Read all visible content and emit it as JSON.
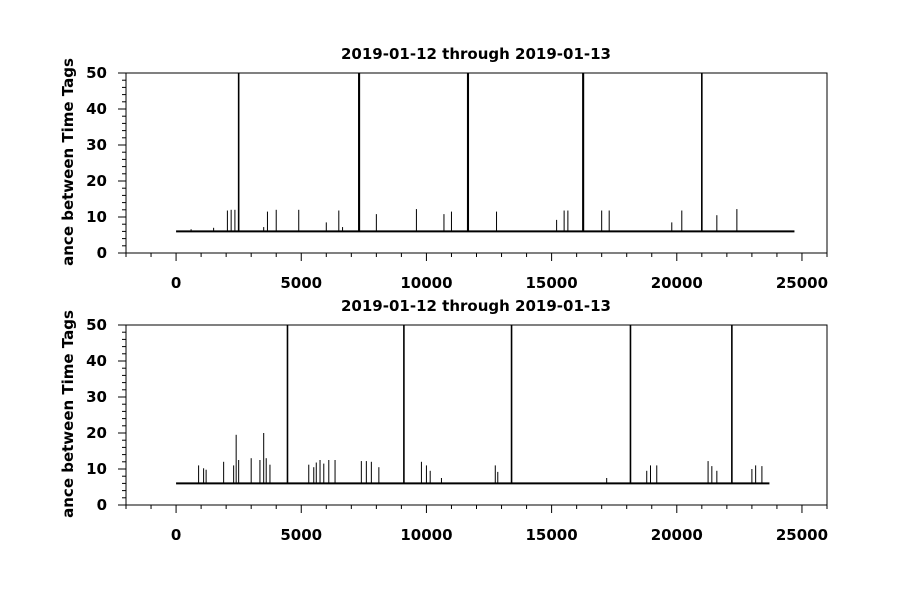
{
  "chart_data": [
    {
      "type": "line",
      "title": "2019-01-12 through 2019-01-13",
      "xlabel": "",
      "ylabel": "ance between Time Tags",
      "xlim": [
        -2000,
        26000
      ],
      "ylim": [
        0,
        50
      ],
      "xticks": [
        0,
        5000,
        10000,
        15000,
        20000,
        25000
      ],
      "yticks": [
        0,
        10,
        20,
        30,
        40,
        50
      ],
      "grid": false,
      "baseline": {
        "x_start": 0,
        "x_end": 24700,
        "y": 6
      },
      "spikes": [
        {
          "x": 600,
          "y": 6.6
        },
        {
          "x": 1500,
          "y": 7.0
        },
        {
          "x": 2050,
          "y": 11.8
        },
        {
          "x": 2200,
          "y": 12.0
        },
        {
          "x": 2350,
          "y": 12.0
        },
        {
          "x": 2500,
          "y": 50
        },
        {
          "x": 3500,
          "y": 7.2
        },
        {
          "x": 3650,
          "y": 11.5
        },
        {
          "x": 4000,
          "y": 12.0
        },
        {
          "x": 4900,
          "y": 12.0
        },
        {
          "x": 6000,
          "y": 8.5
        },
        {
          "x": 6500,
          "y": 11.8
        },
        {
          "x": 6650,
          "y": 7.2
        },
        {
          "x": 7300,
          "y": 50
        },
        {
          "x": 7320,
          "y": 50
        },
        {
          "x": 8000,
          "y": 10.8
        },
        {
          "x": 9600,
          "y": 12.2
        },
        {
          "x": 10700,
          "y": 10.8
        },
        {
          "x": 11000,
          "y": 11.5
        },
        {
          "x": 11650,
          "y": 50
        },
        {
          "x": 11670,
          "y": 50
        },
        {
          "x": 12800,
          "y": 11.5
        },
        {
          "x": 15200,
          "y": 9.2
        },
        {
          "x": 15500,
          "y": 11.8
        },
        {
          "x": 15650,
          "y": 11.8
        },
        {
          "x": 16250,
          "y": 50
        },
        {
          "x": 16270,
          "y": 50
        },
        {
          "x": 17000,
          "y": 11.8
        },
        {
          "x": 17300,
          "y": 11.8
        },
        {
          "x": 19800,
          "y": 8.5
        },
        {
          "x": 20200,
          "y": 11.8
        },
        {
          "x": 21000,
          "y": 50
        },
        {
          "x": 21000,
          "y": 7.2
        },
        {
          "x": 21600,
          "y": 10.5
        },
        {
          "x": 22400,
          "y": 12.2
        }
      ]
    },
    {
      "type": "line",
      "title": "2019-01-12 through 2019-01-13",
      "xlabel": "",
      "ylabel": "ance between Time Tags",
      "xlim": [
        -2000,
        26000
      ],
      "ylim": [
        0,
        50
      ],
      "xticks": [
        0,
        5000,
        10000,
        15000,
        20000,
        25000
      ],
      "yticks": [
        0,
        10,
        20,
        30,
        40,
        50
      ],
      "grid": false,
      "baseline": {
        "x_start": 0,
        "x_end": 23700,
        "y": 6
      },
      "spikes": [
        {
          "x": 900,
          "y": 11.0
        },
        {
          "x": 1100,
          "y": 10.2
        },
        {
          "x": 1200,
          "y": 9.8
        },
        {
          "x": 1900,
          "y": 12.0
        },
        {
          "x": 2300,
          "y": 11.0
        },
        {
          "x": 2400,
          "y": 19.5
        },
        {
          "x": 2500,
          "y": 12.5
        },
        {
          "x": 3000,
          "y": 13.0
        },
        {
          "x": 3350,
          "y": 12.5
        },
        {
          "x": 3500,
          "y": 20.0
        },
        {
          "x": 3600,
          "y": 13.0
        },
        {
          "x": 3750,
          "y": 11.2
        },
        {
          "x": 4450,
          "y": 50
        },
        {
          "x": 5300,
          "y": 11.2
        },
        {
          "x": 5500,
          "y": 10.5
        },
        {
          "x": 5600,
          "y": 11.8
        },
        {
          "x": 5750,
          "y": 12.5
        },
        {
          "x": 5900,
          "y": 11.5
        },
        {
          "x": 6100,
          "y": 12.5
        },
        {
          "x": 6350,
          "y": 12.5
        },
        {
          "x": 7400,
          "y": 12.2
        },
        {
          "x": 7600,
          "y": 12.2
        },
        {
          "x": 7800,
          "y": 12.0
        },
        {
          "x": 8100,
          "y": 10.5
        },
        {
          "x": 9100,
          "y": 50
        },
        {
          "x": 9800,
          "y": 12.0
        },
        {
          "x": 10000,
          "y": 11.0
        },
        {
          "x": 10150,
          "y": 9.5
        },
        {
          "x": 10600,
          "y": 7.5
        },
        {
          "x": 12750,
          "y": 11.0
        },
        {
          "x": 12850,
          "y": 9.2
        },
        {
          "x": 13400,
          "y": 50
        },
        {
          "x": 17200,
          "y": 7.5
        },
        {
          "x": 18150,
          "y": 50
        },
        {
          "x": 18800,
          "y": 9.5
        },
        {
          "x": 18950,
          "y": 11.0
        },
        {
          "x": 19200,
          "y": 11.0
        },
        {
          "x": 21250,
          "y": 12.2
        },
        {
          "x": 21400,
          "y": 10.8
        },
        {
          "x": 21600,
          "y": 9.5
        },
        {
          "x": 22200,
          "y": 50
        },
        {
          "x": 23000,
          "y": 10.0
        },
        {
          "x": 23150,
          "y": 11.0
        },
        {
          "x": 23400,
          "y": 10.8
        }
      ]
    }
  ]
}
